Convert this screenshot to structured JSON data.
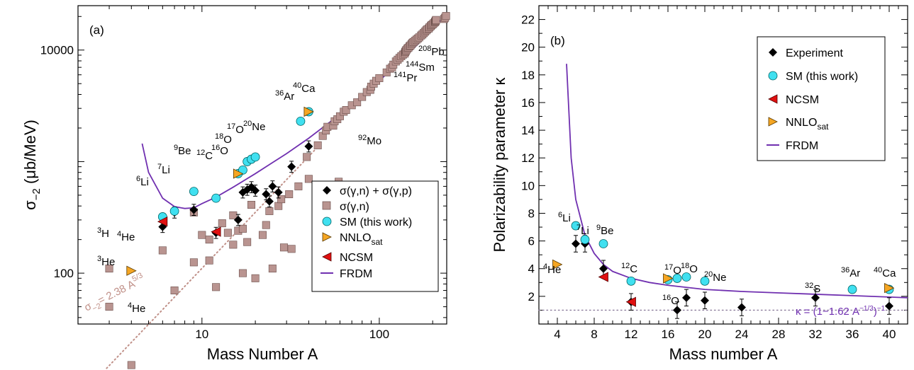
{
  "colors": {
    "experiment": "#000000",
    "gamma_n": "#b99490",
    "gamma_n_edge": "#6b4f4b",
    "sm": "#40e0f0",
    "nnlo": "#f5a623",
    "ncsm": "#e01010",
    "frdm": "#7030b0",
    "fit_line": "#c09088",
    "kappa_line": "#8a7a9a"
  },
  "chart_data": [
    {
      "type": "scatter",
      "panel_label": "(a)",
      "xlabel": "Mass Number A",
      "ylabel": "σ",
      "ylabel_sub": "−2",
      "ylabel_rest": " (μb/MeV)",
      "xscale": "log",
      "yscale": "log",
      "xlim": [
        2.0,
        240
      ],
      "ylim": [
        35,
        25000
      ],
      "x_ticks": [
        {
          "v": 10,
          "label": "10"
        },
        {
          "v": 100,
          "label": "100"
        }
      ],
      "y_ticks": [
        {
          "v": 100,
          "label": "100"
        },
        {
          "v": 10000,
          "label": "10000"
        }
      ],
      "fit_label": "σ",
      "fit_label_sub": "−2",
      "fit_label_rest": "= 2.38 A",
      "fit_label_sup": "5/3",
      "legend": [
        {
          "key": "experiment",
          "label": "σ(γ,n) + σ(γ,p)"
        },
        {
          "key": "gamma_n",
          "label": "σ(γ,n)"
        },
        {
          "key": "sm",
          "label": "SM (this work)"
        },
        {
          "key": "nnlo",
          "label": "NNLO",
          "sub": "sat"
        },
        {
          "key": "ncsm",
          "label": "NCSM"
        },
        {
          "key": "frdm",
          "label": "FRDM"
        }
      ],
      "series": {
        "experiment": [
          [
            6,
            260
          ],
          [
            7,
            350
          ],
          [
            9,
            370
          ],
          [
            12,
            230
          ],
          [
            16,
            300
          ],
          [
            17,
            530
          ],
          [
            18,
            560
          ],
          [
            19,
            590
          ],
          [
            20,
            550
          ],
          [
            23,
            510
          ],
          [
            24,
            440
          ],
          [
            25,
            600
          ],
          [
            27,
            530
          ],
          [
            32,
            900
          ],
          [
            40,
            1370
          ]
        ],
        "gamma_n": [
          [
            3,
            110
          ],
          [
            3,
            50
          ],
          [
            4,
            15
          ],
          [
            6,
            160
          ],
          [
            7,
            70
          ],
          [
            9,
            125
          ],
          [
            9,
            350
          ],
          [
            10,
            220
          ],
          [
            11,
            130
          ],
          [
            11,
            200
          ],
          [
            12,
            75
          ],
          [
            13,
            280
          ],
          [
            14,
            230
          ],
          [
            15,
            180
          ],
          [
            15,
            330
          ],
          [
            16,
            240
          ],
          [
            17,
            250
          ],
          [
            17,
            100
          ],
          [
            18,
            190
          ],
          [
            19,
            410
          ],
          [
            20,
            90
          ],
          [
            22,
            220
          ],
          [
            23,
            270
          ],
          [
            24,
            360
          ],
          [
            25,
            110
          ],
          [
            27,
            400
          ],
          [
            28,
            460
          ],
          [
            29,
            170
          ],
          [
            31,
            510
          ],
          [
            32,
            165
          ],
          [
            35,
            600
          ],
          [
            39,
            1100
          ],
          [
            40,
            700
          ],
          [
            45,
            1400
          ],
          [
            48,
            1700
          ],
          [
            50,
            1900
          ],
          [
            51,
            2050
          ],
          [
            55,
            2100
          ],
          [
            56,
            2300
          ],
          [
            58,
            2400
          ],
          [
            59,
            660
          ],
          [
            60,
            2550
          ],
          [
            63,
            2800
          ],
          [
            65,
            2900
          ],
          [
            70,
            3200
          ],
          [
            75,
            3400
          ],
          [
            80,
            3800
          ],
          [
            85,
            4200
          ],
          [
            89,
            4400
          ],
          [
            90,
            4700
          ],
          [
            93,
            5000
          ],
          [
            96,
            5300
          ],
          [
            100,
            5600
          ],
          [
            110,
            6300
          ],
          [
            115,
            6800
          ],
          [
            118,
            7000
          ],
          [
            120,
            7400
          ],
          [
            124,
            7900
          ],
          [
            127,
            8200
          ],
          [
            130,
            8500
          ],
          [
            133,
            8800
          ],
          [
            136,
            9100
          ],
          [
            139,
            9300
          ],
          [
            140,
            9600
          ],
          [
            141,
            9800
          ],
          [
            142,
            10000
          ],
          [
            144,
            10300
          ],
          [
            146,
            10500
          ],
          [
            148,
            10800
          ],
          [
            150,
            11000
          ],
          [
            152,
            11300
          ],
          [
            154,
            11600
          ],
          [
            156,
            11800
          ],
          [
            159,
            12100
          ],
          [
            162,
            12400
          ],
          [
            165,
            12700
          ],
          [
            168,
            13000
          ],
          [
            172,
            13500
          ],
          [
            175,
            13800
          ],
          [
            178,
            14200
          ],
          [
            181,
            14600
          ],
          [
            184,
            15000
          ],
          [
            186,
            15300
          ],
          [
            190,
            15600
          ],
          [
            192,
            16000
          ],
          [
            195,
            16400
          ],
          [
            197,
            16700
          ],
          [
            200,
            17000
          ],
          [
            203,
            17400
          ],
          [
            206,
            17800
          ],
          [
            207,
            18000
          ],
          [
            208,
            18300
          ],
          [
            209,
            18600
          ],
          [
            232,
            19000
          ],
          [
            235,
            19500
          ],
          [
            238,
            20200
          ]
        ],
        "sm": [
          [
            6,
            320
          ],
          [
            7,
            360
          ],
          [
            9,
            540
          ],
          [
            12,
            470
          ],
          [
            16,
            780
          ],
          [
            17,
            840
          ],
          [
            18,
            1000
          ],
          [
            19,
            1050
          ],
          [
            20,
            1100
          ],
          [
            36,
            2300
          ],
          [
            40,
            2800
          ]
        ],
        "nnlo": [
          [
            4,
            105
          ],
          [
            16,
            780
          ],
          [
            40,
            2800
          ]
        ],
        "ncsm": [
          [
            6,
            290
          ],
          [
            12,
            235
          ]
        ],
        "frdm": [
          [
            4.6,
            1450
          ],
          [
            5,
            800
          ],
          [
            6,
            470
          ],
          [
            7,
            395
          ],
          [
            8,
            380
          ],
          [
            9,
            385
          ],
          [
            10,
            420
          ],
          [
            12,
            480
          ],
          [
            15,
            590
          ],
          [
            20,
            780
          ],
          [
            30,
            1180
          ],
          [
            40,
            1620
          ],
          [
            60,
            2650
          ],
          [
            80,
            3900
          ],
          [
            100,
            5300
          ],
          [
            140,
            8700
          ],
          [
            180,
            13000
          ],
          [
            240,
            21000
          ]
        ]
      },
      "isotope_labels": [
        {
          "t": "H",
          "sup": "3"
        },
        {
          "t": "He",
          "sup": "3"
        },
        {
          "t": "He",
          "sup": "4"
        },
        {
          "t": "He",
          "sup": "4"
        },
        {
          "t": "Li",
          "sup": "6"
        },
        {
          "t": "Li",
          "sup": "7"
        },
        {
          "t": "Be",
          "sup": "9"
        },
        {
          "t": "C",
          "sup": "12"
        },
        {
          "t": "O",
          "sup": "16"
        },
        {
          "t": "O",
          "sup": "17"
        },
        {
          "t": "O",
          "sup": "18"
        },
        {
          "t": "Ne",
          "sup": "20"
        },
        {
          "t": "Ar",
          "sup": "36"
        },
        {
          "t": "Ca",
          "sup": "40"
        },
        {
          "t": "Mo",
          "sup": "92"
        },
        {
          "t": "Pr",
          "sup": "141"
        },
        {
          "t": "Sm",
          "sup": "144"
        },
        {
          "t": "Pb",
          "sup": "208"
        }
      ]
    },
    {
      "type": "scatter",
      "panel_label": "(b)",
      "xlabel": "Mass number A",
      "ylabel": "Polarizability parameter  κ",
      "xlim": [
        2,
        42
      ],
      "ylim": [
        0,
        23
      ],
      "x_ticks": [
        4,
        8,
        12,
        16,
        20,
        24,
        28,
        32,
        36,
        40
      ],
      "y_ticks": [
        2,
        4,
        6,
        8,
        10,
        12,
        14,
        16,
        18,
        20,
        22
      ],
      "dotted_line_y": 1,
      "kappa_label": "κ = (1−1.62 A",
      "kappa_sup": "−1/3",
      "kappa_rest": ")",
      "kappa_sup2": "−1",
      "legend": [
        {
          "key": "experiment",
          "label": "Experiment"
        },
        {
          "key": "sm",
          "label": "SM (this work)"
        },
        {
          "key": "ncsm",
          "label": "NCSM"
        },
        {
          "key": "nnlo",
          "label": "NNLO",
          "sub": "sat"
        },
        {
          "key": "frdm",
          "label": "FRDM"
        }
      ],
      "series": {
        "experiment": [
          [
            6,
            5.8
          ],
          [
            7,
            5.8
          ],
          [
            9,
            4.0
          ],
          [
            12,
            1.6
          ],
          [
            17,
            1.0
          ],
          [
            18,
            1.9
          ],
          [
            20,
            1.7
          ],
          [
            24,
            1.2
          ],
          [
            32,
            1.9
          ],
          [
            40,
            1.3
          ]
        ],
        "sm": [
          [
            6,
            7.1
          ],
          [
            7,
            6.1
          ],
          [
            9,
            5.8
          ],
          [
            12,
            3.1
          ],
          [
            16,
            3.2
          ],
          [
            17,
            3.3
          ],
          [
            18,
            3.4
          ],
          [
            20,
            3.1
          ],
          [
            36,
            2.5
          ],
          [
            40,
            2.5
          ]
        ],
        "ncsm": [
          [
            9,
            3.4
          ],
          [
            12,
            1.6
          ]
        ],
        "nnlo": [
          [
            4,
            4.3
          ],
          [
            16,
            3.3
          ],
          [
            40,
            2.6
          ]
        ],
        "frdm": [
          [
            5,
            18.8
          ],
          [
            5.5,
            12.0
          ],
          [
            6,
            9.0
          ],
          [
            7,
            6.4
          ],
          [
            8,
            5.1
          ],
          [
            9,
            4.3
          ],
          [
            10,
            3.8
          ],
          [
            12,
            3.3
          ],
          [
            14,
            3.0
          ],
          [
            16,
            2.8
          ],
          [
            20,
            2.5
          ],
          [
            24,
            2.35
          ],
          [
            28,
            2.25
          ],
          [
            32,
            2.15
          ],
          [
            36,
            2.05
          ],
          [
            40,
            1.95
          ],
          [
            42,
            1.9
          ]
        ]
      },
      "isotope_labels": [
        {
          "t": "He",
          "sup": "4"
        },
        {
          "t": "Li",
          "sup": "6"
        },
        {
          "t": "Li",
          "sup": "7"
        },
        {
          "t": "Be",
          "sup": "9"
        },
        {
          "t": "C",
          "sup": "12"
        },
        {
          "t": "O",
          "sup": "16"
        },
        {
          "t": "O",
          "sup": "17"
        },
        {
          "t": "O",
          "sup": "18"
        },
        {
          "t": "Ne",
          "sup": "20"
        },
        {
          "t": "S",
          "sup": "32"
        },
        {
          "t": "Ar",
          "sup": "36"
        },
        {
          "t": "Ca",
          "sup": "40"
        }
      ]
    }
  ]
}
